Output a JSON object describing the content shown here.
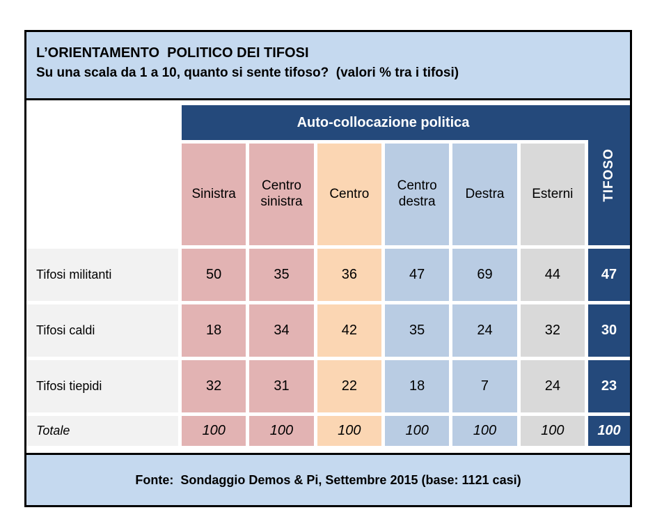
{
  "header": {
    "line1": "L’ORIENTAMENTO  POLITICO DEI TIFOSI",
    "line2": "Su una scala da 1 a 10, quanto si sente tifoso?  (valori % tra i tifosi)"
  },
  "table": {
    "group_header": "Auto-collocazione politica",
    "tifoso_header": "TIFOSO",
    "columns": [
      {
        "label": "Sinistra"
      },
      {
        "label": "Centro sinistra"
      },
      {
        "label": "Centro"
      },
      {
        "label": "Centro destra"
      },
      {
        "label": "Destra"
      },
      {
        "label": "Esterni"
      }
    ],
    "rows": [
      {
        "label": "Tifosi militanti",
        "values": [
          "50",
          "35",
          "36",
          "47",
          "69",
          "44"
        ],
        "tifoso": "47"
      },
      {
        "label": "Tifosi caldi",
        "values": [
          "18",
          "34",
          "42",
          "35",
          "24",
          "32"
        ],
        "tifoso": "30"
      },
      {
        "label": "Tifosi tiepidi",
        "values": [
          "32",
          "31",
          "22",
          "18",
          "7",
          "24"
        ],
        "tifoso": "23"
      },
      {
        "label": "Totale",
        "values": [
          "100",
          "100",
          "100",
          "100",
          "100",
          "100"
        ],
        "tifoso": "100"
      }
    ]
  },
  "footer": {
    "text": "Fonte:  Sondaggio Demos & Pi, Settembre 2015 (base: 1121 casi)"
  },
  "colors": {
    "dark_blue": "#24497b",
    "band_light_blue": "#c5d9ef",
    "pink": "#e2b3b3",
    "peach": "#fbd6b3",
    "light_blue": "#b9cce3",
    "gray": "#d9d9d9",
    "row_label_gray": "#f2f2f2",
    "border": "#000000"
  },
  "chart_data": {
    "type": "table",
    "title": "L’ORIENTAMENTO POLITICO DEI TIFOSI",
    "subtitle": "Su una scala da 1 a 10, quanto si sente tifoso? (valori % tra i tifosi)",
    "group_header": "Auto-collocazione politica",
    "columns": [
      "Sinistra",
      "Centro sinistra",
      "Centro",
      "Centro destra",
      "Destra",
      "Esterni",
      "TIFOSO"
    ],
    "rows": [
      {
        "label": "Tifosi militanti",
        "values": [
          50,
          35,
          36,
          47,
          69,
          44,
          47
        ]
      },
      {
        "label": "Tifosi caldi",
        "values": [
          18,
          34,
          42,
          35,
          24,
          32,
          30
        ]
      },
      {
        "label": "Tifosi tiepidi",
        "values": [
          32,
          31,
          22,
          18,
          7,
          24,
          23
        ]
      },
      {
        "label": "Totale",
        "values": [
          100,
          100,
          100,
          100,
          100,
          100,
          100
        ]
      }
    ],
    "units": "percent",
    "source": "Fonte: Sondaggio Demos & Pi, Settembre 2015 (base: 1121 casi)"
  }
}
